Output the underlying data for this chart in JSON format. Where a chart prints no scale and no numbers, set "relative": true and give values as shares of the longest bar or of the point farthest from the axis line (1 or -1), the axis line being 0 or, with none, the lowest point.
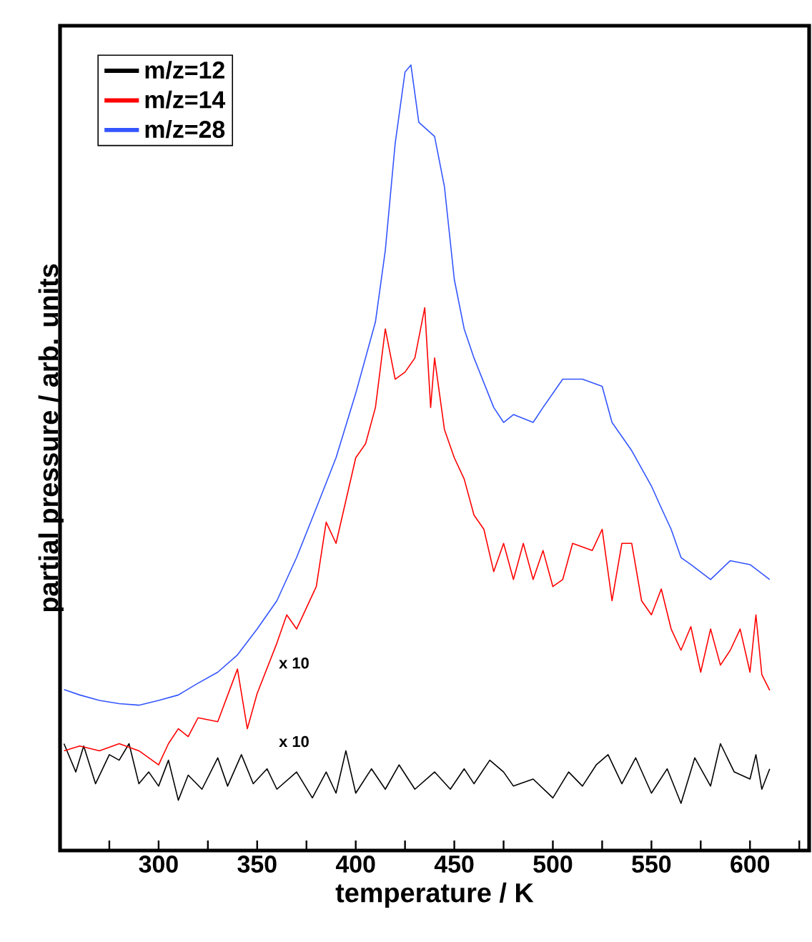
{
  "chart_data": {
    "type": "line",
    "xlabel": "temperature / K",
    "ylabel": "partial pressure / arb. units",
    "relative": true,
    "tick_labels": "x",
    "legend": "top left",
    "marker": "none",
    "line_style": "solid",
    "xlim": [
      250,
      630
    ],
    "xticks": [
      {
        "value": 275,
        "label": null
      },
      300,
      {
        "value": 325,
        "label": null
      },
      350,
      {
        "value": 375,
        "label": null
      },
      400,
      {
        "value": 425,
        "label": null
      },
      450,
      {
        "value": 475,
        "label": null
      },
      500,
      {
        "value": 525,
        "label": null
      },
      550,
      {
        "value": 575,
        "label": null
      },
      600,
      {
        "value": 625,
        "label": null
      }
    ],
    "annotations": [
      "x 10",
      "x 10"
    ],
    "series": [
      {
        "name": "m/z=12",
        "color": "#000000",
        "x": [
          252,
          258,
          262,
          268,
          275,
          280,
          285,
          290,
          295,
          300,
          305,
          310,
          315,
          322,
          330,
          335,
          342,
          348,
          355,
          360,
          370,
          378,
          385,
          390,
          395,
          400,
          408,
          415,
          422,
          430,
          440,
          448,
          455,
          460,
          468,
          475,
          480,
          490,
          500,
          508,
          515,
          522,
          528,
          535,
          542,
          550,
          558,
          565,
          572,
          580,
          585,
          592,
          600,
          603,
          606,
          610
        ],
        "values": [
          0.136,
          0.1,
          0.133,
          0.085,
          0.122,
          0.115,
          0.136,
          0.085,
          0.1,
          0.082,
          0.115,
          0.064,
          0.096,
          0.078,
          0.118,
          0.082,
          0.122,
          0.085,
          0.104,
          0.078,
          0.1,
          0.067,
          0.1,
          0.073,
          0.127,
          0.073,
          0.104,
          0.078,
          0.109,
          0.078,
          0.1,
          0.078,
          0.104,
          0.085,
          0.115,
          0.1,
          0.082,
          0.091,
          0.067,
          0.1,
          0.082,
          0.109,
          0.122,
          0.085,
          0.118,
          0.073,
          0.104,
          0.06,
          0.118,
          0.082,
          0.136,
          0.1,
          0.091,
          0.122,
          0.078,
          0.104
        ]
      },
      {
        "name": "m/z=14",
        "color": "#ff0000",
        "x": [
          252,
          260,
          270,
          280,
          290,
          300,
          305,
          310,
          315,
          320,
          330,
          340,
          345,
          350,
          360,
          365,
          370,
          380,
          385,
          390,
          400,
          405,
          410,
          415,
          420,
          425,
          430,
          435,
          438,
          440,
          445,
          450,
          455,
          460,
          465,
          470,
          475,
          480,
          485,
          490,
          495,
          500,
          505,
          510,
          520,
          525,
          530,
          535,
          540,
          545,
          550,
          555,
          560,
          565,
          570,
          575,
          580,
          585,
          590,
          595,
          600,
          603,
          606,
          610
        ],
        "values": [
          0.127,
          0.133,
          0.127,
          0.136,
          0.127,
          0.109,
          0.136,
          0.155,
          0.145,
          0.169,
          0.164,
          0.231,
          0.155,
          0.2,
          0.264,
          0.3,
          0.282,
          0.336,
          0.418,
          0.391,
          0.5,
          0.518,
          0.564,
          0.664,
          0.6,
          0.609,
          0.627,
          0.691,
          0.564,
          0.627,
          0.536,
          0.5,
          0.473,
          0.427,
          0.409,
          0.355,
          0.391,
          0.345,
          0.391,
          0.345,
          0.382,
          0.336,
          0.345,
          0.391,
          0.382,
          0.409,
          0.318,
          0.391,
          0.391,
          0.318,
          0.3,
          0.333,
          0.282,
          0.255,
          0.285,
          0.227,
          0.282,
          0.236,
          0.255,
          0.282,
          0.227,
          0.3,
          0.224,
          0.204
        ]
      },
      {
        "name": "m/z=28",
        "color": "#3355ff",
        "x": [
          252,
          260,
          270,
          280,
          290,
          300,
          310,
          320,
          330,
          340,
          350,
          360,
          370,
          380,
          390,
          400,
          410,
          415,
          420,
          425,
          428,
          432,
          440,
          445,
          450,
          455,
          460,
          470,
          475,
          480,
          490,
          495,
          505,
          515,
          525,
          530,
          540,
          550,
          555,
          560,
          565,
          570,
          580,
          590,
          600,
          610
        ],
        "values": [
          0.205,
          0.198,
          0.191,
          0.187,
          0.185,
          0.191,
          0.198,
          0.213,
          0.227,
          0.249,
          0.282,
          0.318,
          0.373,
          0.436,
          0.5,
          0.582,
          0.673,
          0.764,
          0.9,
          0.991,
          1,
          0.927,
          0.909,
          0.845,
          0.727,
          0.664,
          0.627,
          0.564,
          0.545,
          0.555,
          0.545,
          0.564,
          0.6,
          0.6,
          0.591,
          0.545,
          0.509,
          0.464,
          0.436,
          0.409,
          0.373,
          0.364,
          0.345,
          0.369,
          0.364,
          0.345
        ]
      }
    ]
  }
}
